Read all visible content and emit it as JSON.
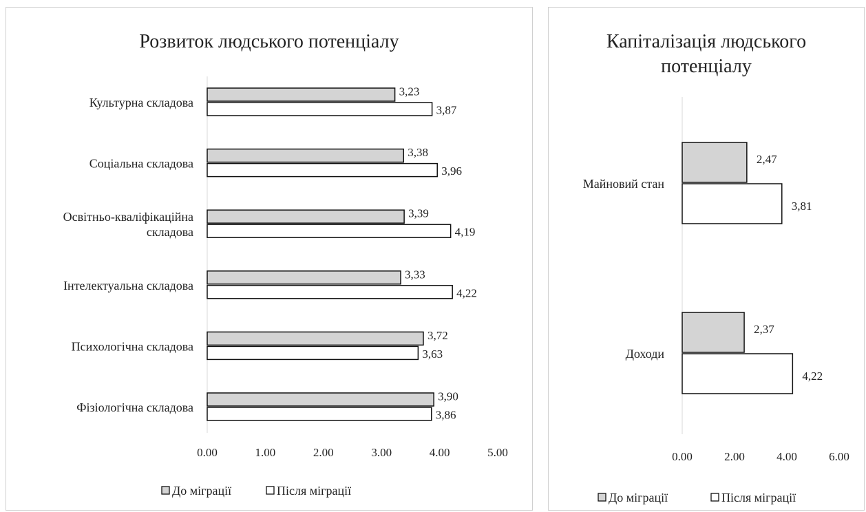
{
  "chart_data": [
    {
      "type": "bar",
      "orientation": "horizontal",
      "title": "Розвиток людського потенціалу",
      "categories": [
        "Культурна складова",
        "Соціальна складова",
        "Освітньо-кваліфікаційна складова",
        "Інтелектуальна складова",
        "Психологічна складова",
        "Фізіологічна складова"
      ],
      "series": [
        {
          "name": "До міграції",
          "values": [
            3.23,
            3.38,
            3.39,
            3.33,
            3.72,
            3.9
          ],
          "labels": [
            "3,23",
            "3,38",
            "3,39",
            "3,33",
            "3,72",
            "3,90"
          ],
          "color": "#d4d4d4"
        },
        {
          "name": "Після міграції",
          "values": [
            3.87,
            3.96,
            4.19,
            4.22,
            3.63,
            3.86
          ],
          "labels": [
            "3,87",
            "3,96",
            "4,19",
            "4,22",
            "3,63",
            "3,86"
          ],
          "color": "#ffffff"
        }
      ],
      "xlim": [
        0,
        5
      ],
      "xticks": [
        "0.00",
        "1.00",
        "2.00",
        "3.00",
        "4.00",
        "5.00"
      ],
      "grid": false,
      "legend": "bottom"
    },
    {
      "type": "bar",
      "orientation": "horizontal",
      "title": "Капіталізація людського потенціалу",
      "categories": [
        "Майновий стан",
        "Доходи"
      ],
      "series": [
        {
          "name": "До міграції",
          "values": [
            2.47,
            2.37
          ],
          "labels": [
            "2,47",
            "2,37"
          ],
          "color": "#d4d4d4"
        },
        {
          "name": "Після міграції",
          "values": [
            3.81,
            4.22
          ],
          "labels": [
            "3,81",
            "4,22"
          ],
          "color": "#ffffff"
        }
      ],
      "xlim": [
        0,
        6
      ],
      "xticks": [
        "0.00",
        "2.00",
        "4.00",
        "6.00"
      ],
      "grid": false,
      "legend": "bottom"
    }
  ]
}
